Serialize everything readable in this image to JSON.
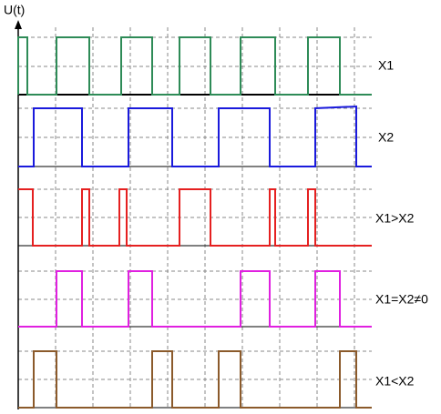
{
  "axis": {
    "label": "U(t)"
  },
  "signals": [
    {
      "label": "X1"
    },
    {
      "label": "X2"
    },
    {
      "label": "X1>X2"
    },
    {
      "label": "X1=X2≠0"
    },
    {
      "label": "X1<X2"
    }
  ]
}
